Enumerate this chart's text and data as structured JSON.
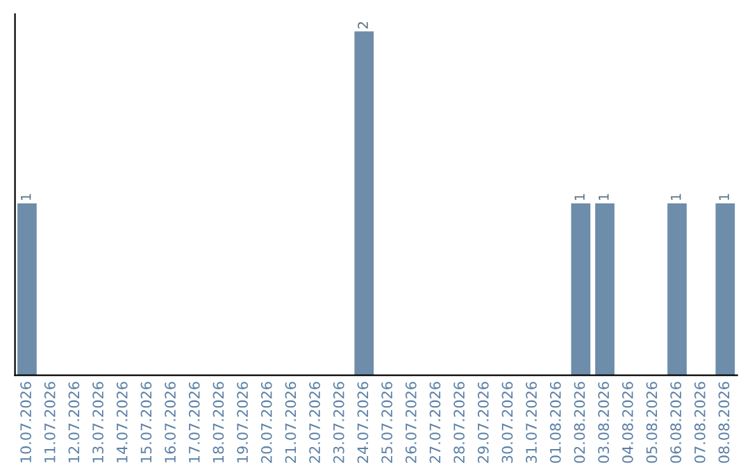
{
  "chart_data": {
    "type": "bar",
    "categories": [
      "10.07.2026",
      "11.07.2026",
      "12.07.2026",
      "13.07.2026",
      "14.07.2026",
      "15.07.2026",
      "16.07.2026",
      "17.07.2026",
      "18.07.2026",
      "19.07.2026",
      "20.07.2026",
      "21.07.2026",
      "22.07.2026",
      "23.07.2026",
      "24.07.2026",
      "25.07.2026",
      "26.07.2026",
      "27.07.2026",
      "28.07.2026",
      "29.07.2026",
      "30.07.2026",
      "31.07.2026",
      "01.08.2026",
      "02.08.2026",
      "03.08.2026",
      "04.08.2026",
      "05.08.2026",
      "06.08.2026",
      "07.08.2026",
      "08.08.2026"
    ],
    "values": [
      1,
      0,
      0,
      0,
      0,
      0,
      0,
      0,
      0,
      0,
      0,
      0,
      0,
      0,
      2,
      0,
      0,
      0,
      0,
      0,
      0,
      0,
      0,
      1,
      1,
      0,
      0,
      1,
      0,
      1
    ],
    "color": "#6d8daa",
    "value_labels": [
      "1",
      null,
      null,
      null,
      null,
      null,
      null,
      null,
      null,
      null,
      null,
      null,
      null,
      null,
      "2",
      null,
      null,
      null,
      null,
      null,
      null,
      null,
      null,
      "1",
      "1",
      null,
      null,
      "1",
      null,
      "1"
    ],
    "tick_labels": "x",
    "grid": false,
    "legend": false
  }
}
